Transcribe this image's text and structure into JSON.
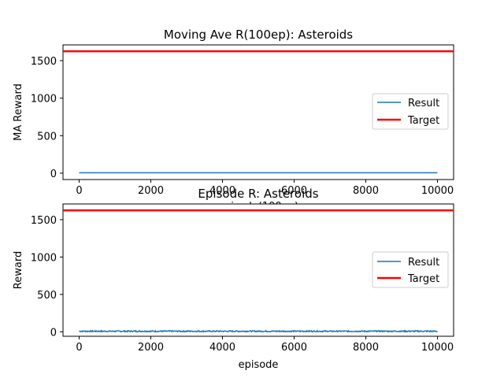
{
  "chart_data": [
    {
      "type": "line",
      "title": "Moving Ave R(100ep): Asteroids",
      "xlabel": "episode(100ep)",
      "ylabel": "MA Reward",
      "xlim": [
        -450,
        10450
      ],
      "ylim": [
        -85,
        1710
      ],
      "xticks": [
        0,
        2000,
        4000,
        6000,
        8000,
        10000
      ],
      "yticks": [
        0,
        500,
        1000,
        1500
      ],
      "legend_position": "center-right",
      "series": [
        {
          "name": "Result",
          "color": "#1f77b4",
          "kind": "moving_average",
          "x": [
            0,
            10000
          ],
          "y": [
            5,
            5
          ]
        },
        {
          "name": "Target",
          "color": "#ff0000",
          "kind": "hline",
          "x": [
            -450,
            10450
          ],
          "y": [
            1625,
            1625
          ]
        }
      ]
    },
    {
      "type": "line",
      "title": "Episode R: Asteroids",
      "xlabel": "episode",
      "ylabel": "Reward",
      "xlim": [
        -450,
        10450
      ],
      "ylim": [
        -60,
        1710
      ],
      "xticks": [
        0,
        2000,
        4000,
        6000,
        8000,
        10000
      ],
      "yticks": [
        0,
        500,
        1000,
        1500
      ],
      "legend_position": "center-right",
      "series": [
        {
          "name": "Result",
          "color": "#1f77b4",
          "kind": "noisy",
          "x": [
            0,
            10000
          ],
          "y": [
            5,
            5
          ],
          "noise_amplitude": 15
        },
        {
          "name": "Target",
          "color": "#ff0000",
          "kind": "hline",
          "x": [
            -450,
            10450
          ],
          "y": [
            1625,
            1625
          ]
        }
      ]
    }
  ]
}
